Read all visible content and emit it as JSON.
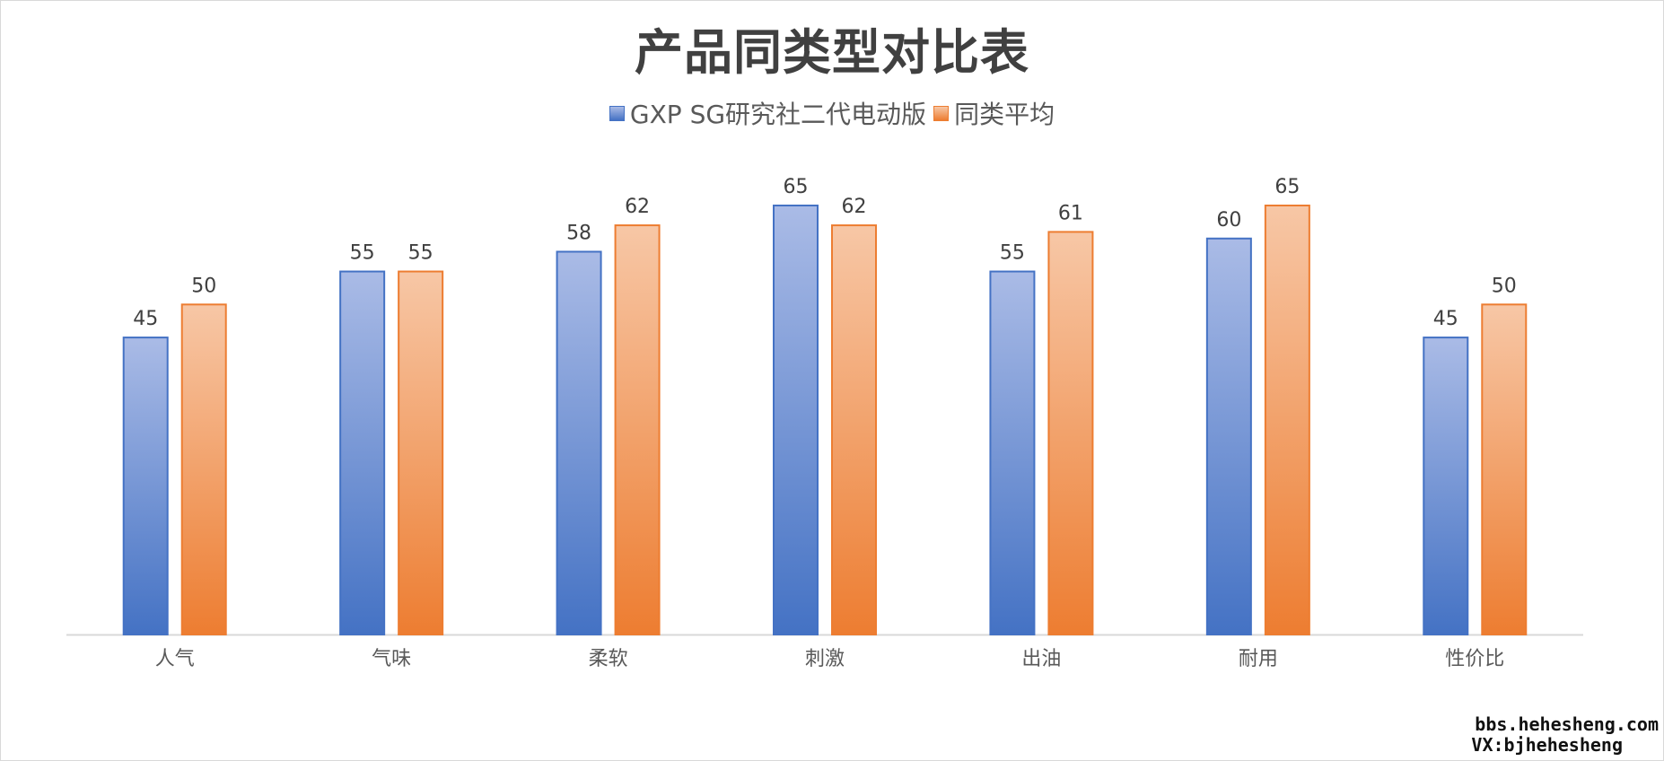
{
  "chart_data": {
    "type": "bar",
    "title": "产品同类型对比表",
    "categories": [
      "人气",
      "气味",
      "柔软",
      "刺激",
      "出油",
      "耐用",
      "性价比"
    ],
    "series": [
      {
        "name": "GXP SG研究社二代电动版",
        "values": [
          45,
          55,
          58,
          65,
          55,
          60,
          45
        ],
        "color_top": "#aabbe6",
        "color_bottom": "#4472c4",
        "stroke": "#4472c4"
      },
      {
        "name": "同类平均",
        "values": [
          50,
          55,
          62,
          62,
          61,
          65,
          50
        ],
        "color_top": "#f7c7a6",
        "color_bottom": "#ed7d31",
        "stroke": "#ed7d31"
      }
    ],
    "ylim": [
      0,
      65
    ],
    "grid": false,
    "legend_position": "top",
    "data_labels": true
  },
  "watermark": {
    "line1": "bbs.hehesheng.com",
    "line2": "VX:bjhehesheng"
  }
}
